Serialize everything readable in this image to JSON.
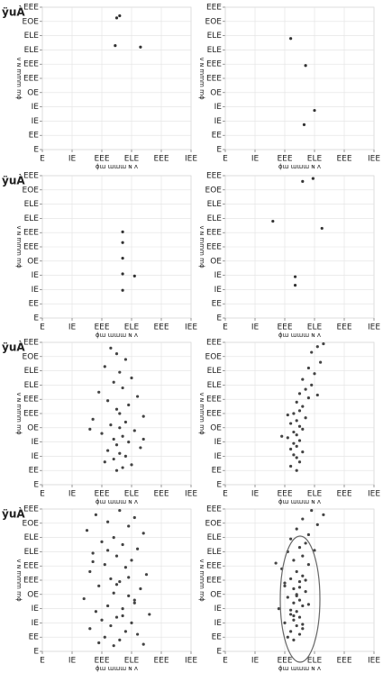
{
  "chart_data": [
    {
      "type": "scatter",
      "label": "ÿuÀ",
      "x_label": "ɸɯ ɯɯɯ ɴ ʌ",
      "y_label": "ɸɯ ɯɯɯ ɴ ʌ",
      "x": [
        2.5,
        2.6,
        2.45,
        3.3
      ],
      "y": [
        9.25,
        9.4,
        7.3,
        7.2
      ],
      "xlim": [
        0,
        5
      ],
      "ylim": [
        0,
        10
      ],
      "xticks": [
        {
          "value": 0,
          "label": "E"
        },
        {
          "value": 1,
          "label": "IE"
        },
        {
          "value": 2,
          "label": "EEE"
        },
        {
          "value": 3,
          "label": "ELE"
        },
        {
          "value": 4,
          "label": "EEE"
        },
        {
          "value": 5,
          "label": "IEE"
        }
      ],
      "yticks": [
        {
          "value": 0,
          "label": "E"
        },
        {
          "value": 1,
          "label": "EE"
        },
        {
          "value": 2,
          "label": "IE"
        },
        {
          "value": 3,
          "label": "IE"
        },
        {
          "value": 4,
          "label": "OE"
        },
        {
          "value": 5,
          "label": "EEE"
        },
        {
          "value": 6,
          "label": "EEE"
        },
        {
          "value": 7,
          "label": "ELE"
        },
        {
          "value": 8,
          "label": "ELE"
        },
        {
          "value": 9,
          "label": "EOE"
        },
        {
          "value": 10,
          "label": "EEE"
        }
      ],
      "color": "#333333",
      "grid": true
    },
    {
      "type": "scatter",
      "x_label": "ɸɯ ɯɯɯ ɴ ʌ",
      "y_label": "ɸɯ ɯɯɯ ɴ ʌ",
      "x": [
        2.2,
        2.7,
        3.0,
        2.65
      ],
      "y": [
        7.8,
        5.9,
        2.75,
        1.75
      ],
      "xlim": [
        0,
        5
      ],
      "ylim": [
        0,
        10
      ],
      "xticks": [
        {
          "value": 0,
          "label": "E"
        },
        {
          "value": 1,
          "label": "IE"
        },
        {
          "value": 2,
          "label": "EEE"
        },
        {
          "value": 3,
          "label": "ELE"
        },
        {
          "value": 4,
          "label": "EEE"
        },
        {
          "value": 5,
          "label": "IEE"
        }
      ],
      "yticks": [
        {
          "value": 0,
          "label": "E"
        },
        {
          "value": 1,
          "label": "EE"
        },
        {
          "value": 2,
          "label": "IE"
        },
        {
          "value": 3,
          "label": "IE"
        },
        {
          "value": 4,
          "label": "OE"
        },
        {
          "value": 5,
          "label": "EEE"
        },
        {
          "value": 6,
          "label": "EEE"
        },
        {
          "value": 7,
          "label": "ELE"
        },
        {
          "value": 8,
          "label": "ELE"
        },
        {
          "value": 9,
          "label": "EOE"
        },
        {
          "value": 10,
          "label": "EEE"
        }
      ],
      "color": "#333333",
      "grid": true
    },
    {
      "type": "scatter",
      "label": "ÿuÀ",
      "x_label": "ɸɯ ɯɯɯ ɴ ʌ",
      "y_label": "ɸɯ ɯɯɯ ɴ ʌ",
      "x": [
        2.7,
        2.7,
        2.7,
        2.7,
        3.1,
        2.7
      ],
      "y": [
        6.05,
        5.3,
        4.2,
        3.1,
        2.95,
        1.95
      ],
      "xlim": [
        0,
        5
      ],
      "ylim": [
        0,
        10
      ],
      "xticks": [
        {
          "value": 0,
          "label": "E"
        },
        {
          "value": 1,
          "label": "IE"
        },
        {
          "value": 2,
          "label": "EEE"
        },
        {
          "value": 3,
          "label": "ELE"
        },
        {
          "value": 4,
          "label": "EEE"
        },
        {
          "value": 5,
          "label": "IEE"
        }
      ],
      "yticks": [
        {
          "value": 0,
          "label": "E"
        },
        {
          "value": 1,
          "label": "EE"
        },
        {
          "value": 2,
          "label": "IE"
        },
        {
          "value": 3,
          "label": "IE"
        },
        {
          "value": 4,
          "label": "OE"
        },
        {
          "value": 5,
          "label": "EEE"
        },
        {
          "value": 6,
          "label": "EEE"
        },
        {
          "value": 7,
          "label": "ELE"
        },
        {
          "value": 8,
          "label": "ELE"
        },
        {
          "value": 9,
          "label": "EOE"
        },
        {
          "value": 10,
          "label": "EEE"
        }
      ],
      "color": "#333333",
      "grid": true
    },
    {
      "type": "scatter",
      "x_label": "ɸɯ ɯɯɯ ɴ ʌ",
      "y_label": "ɸɯ ɯɯɯ ɴ ʌ",
      "x": [
        2.6,
        2.95,
        1.6,
        3.25,
        2.35,
        2.35
      ],
      "y": [
        9.6,
        9.8,
        6.8,
        6.3,
        2.9,
        2.3
      ],
      "xlim": [
        0,
        5
      ],
      "ylim": [
        0,
        10
      ],
      "xticks": [
        {
          "value": 0,
          "label": "E"
        },
        {
          "value": 1,
          "label": "IE"
        },
        {
          "value": 2,
          "label": "EEE"
        },
        {
          "value": 3,
          "label": "ELE"
        },
        {
          "value": 4,
          "label": "EEE"
        },
        {
          "value": 5,
          "label": "IEE"
        }
      ],
      "yticks": [
        {
          "value": 0,
          "label": "E"
        },
        {
          "value": 1,
          "label": "EE"
        },
        {
          "value": 2,
          "label": "IE"
        },
        {
          "value": 3,
          "label": "IE"
        },
        {
          "value": 4,
          "label": "OE"
        },
        {
          "value": 5,
          "label": "EEE"
        },
        {
          "value": 6,
          "label": "EEE"
        },
        {
          "value": 7,
          "label": "ELE"
        },
        {
          "value": 8,
          "label": "ELE"
        },
        {
          "value": 9,
          "label": "EOE"
        },
        {
          "value": 10,
          "label": "EEE"
        }
      ],
      "color": "#333333",
      "grid": true
    },
    {
      "type": "scatter",
      "label": "ÿuÀ",
      "x_label": "ɸɯ ɯɯɯ ɴ ʌ",
      "y_label": "ɸɯ ɯɯɯ ɴ ʌ",
      "x": [
        2.3,
        2.5,
        2.8,
        2.1,
        2.6,
        3.0,
        2.4,
        2.7,
        1.9,
        3.2,
        2.2,
        2.9,
        2.5,
        2.6,
        3.4,
        1.7,
        2.8,
        2.3,
        2.6,
        3.1,
        2.0,
        2.7,
        2.4,
        2.9,
        2.5,
        3.3,
        2.2,
        2.6,
        2.8,
        2.4,
        2.1,
        3.0,
        2.7,
        2.5,
        1.6,
        3.4
      ],
      "y": [
        9.6,
        9.2,
        8.8,
        8.3,
        7.9,
        7.5,
        7.2,
        6.8,
        6.5,
        6.2,
        5.9,
        5.6,
        5.3,
        5.0,
        4.8,
        4.6,
        4.4,
        4.2,
        4.0,
        3.8,
        3.6,
        3.4,
        3.2,
        3.0,
        2.8,
        2.6,
        2.4,
        2.2,
        2.0,
        1.8,
        1.6,
        1.4,
        1.2,
        1.0,
        3.9,
        3.2
      ],
      "xlim": [
        0,
        5
      ],
      "ylim": [
        0,
        10
      ],
      "xticks": [
        {
          "value": 0,
          "label": "E"
        },
        {
          "value": 1,
          "label": "IE"
        },
        {
          "value": 2,
          "label": "EEE"
        },
        {
          "value": 3,
          "label": "ELE"
        },
        {
          "value": 4,
          "label": "EEE"
        },
        {
          "value": 5,
          "label": "IEE"
        }
      ],
      "yticks": [
        {
          "value": 0,
          "label": "E"
        },
        {
          "value": 1,
          "label": "EE"
        },
        {
          "value": 2,
          "label": "IE"
        },
        {
          "value": 3,
          "label": "IE"
        },
        {
          "value": 4,
          "label": "OE"
        },
        {
          "value": 5,
          "label": "EEE"
        },
        {
          "value": 6,
          "label": "EEE"
        },
        {
          "value": 7,
          "label": "ELE"
        },
        {
          "value": 8,
          "label": "ELE"
        },
        {
          "value": 9,
          "label": "EOE"
        },
        {
          "value": 10,
          "label": "EEE"
        }
      ],
      "color": "#444444",
      "grid": true
    },
    {
      "type": "scatter",
      "x_label": "ɸɯ ɯɯɯ ɴ ʌ",
      "y_label": "ɸɯ ɯɯɯ ɴ ʌ",
      "x": [
        3.1,
        3.3,
        2.9,
        3.2,
        2.8,
        3.0,
        2.6,
        2.9,
        2.7,
        2.5,
        2.8,
        2.4,
        2.6,
        2.5,
        2.3,
        2.7,
        2.4,
        2.2,
        2.5,
        2.6,
        2.3,
        2.4,
        2.1,
        2.5,
        2.3,
        2.4,
        2.2,
        2.6,
        2.3,
        2.4,
        1.9,
        2.5,
        2.2,
        2.4,
        3.1,
        2.1
      ],
      "y": [
        9.7,
        9.9,
        9.3,
        8.6,
        8.2,
        7.8,
        7.4,
        7.0,
        6.7,
        6.4,
        6.1,
        5.8,
        5.5,
        5.2,
        5.0,
        4.7,
        4.5,
        4.3,
        4.1,
        3.9,
        3.7,
        3.5,
        3.3,
        3.1,
        2.9,
        2.7,
        2.5,
        2.3,
        2.1,
        1.9,
        3.4,
        1.6,
        1.3,
        1.0,
        6.3,
        4.9
      ],
      "xlim": [
        0,
        5
      ],
      "ylim": [
        0,
        10
      ],
      "xticks": [
        {
          "value": 0,
          "label": "E"
        },
        {
          "value": 1,
          "label": "IE"
        },
        {
          "value": 2,
          "label": "EEE"
        },
        {
          "value": 3,
          "label": "ELE"
        },
        {
          "value": 4,
          "label": "EEE"
        },
        {
          "value": 5,
          "label": "IEE"
        }
      ],
      "yticks": [
        {
          "value": 0,
          "label": "E"
        },
        {
          "value": 1,
          "label": "EE"
        },
        {
          "value": 2,
          "label": "IE"
        },
        {
          "value": 3,
          "label": "IE"
        },
        {
          "value": 4,
          "label": "OE"
        },
        {
          "value": 5,
          "label": "EEE"
        },
        {
          "value": 6,
          "label": "EEE"
        },
        {
          "value": 7,
          "label": "ELE"
        },
        {
          "value": 8,
          "label": "ELE"
        },
        {
          "value": 9,
          "label": "EOE"
        },
        {
          "value": 10,
          "label": "EEE"
        }
      ],
      "color": "#444444",
      "grid": true
    },
    {
      "type": "scatter",
      "label": "ÿuÀ",
      "x_label": "ɸɯ ɯɯɯ ɴ ʌ",
      "y_label": "ɸɯ ɯɯɯ ɴ ʌ",
      "x": [
        2.6,
        1.8,
        3.1,
        2.2,
        2.9,
        1.5,
        3.4,
        2.4,
        2.0,
        2.7,
        3.2,
        1.7,
        2.5,
        3.0,
        2.1,
        2.8,
        1.6,
        3.5,
        2.3,
        2.6,
        1.9,
        3.3,
        2.4,
        2.9,
        1.4,
        3.1,
        2.2,
        2.7,
        1.8,
        3.6,
        2.5,
        2.0,
        3.0,
        2.3,
        1.6,
        2.8,
        3.2,
        2.1,
        2.6,
        1.9,
        3.4,
        2.4,
        2.9,
        1.7,
        3.1,
        2.5,
        2.2,
        2.7
      ],
      "y": [
        9.9,
        9.6,
        9.4,
        9.1,
        8.8,
        8.5,
        8.3,
        8.0,
        7.7,
        7.5,
        7.2,
        6.9,
        6.7,
        6.4,
        6.1,
        5.9,
        5.6,
        5.4,
        5.1,
        4.9,
        4.6,
        4.4,
        4.1,
        3.9,
        3.7,
        3.4,
        3.2,
        3.0,
        2.8,
        2.6,
        2.4,
        2.2,
        2.0,
        1.8,
        1.6,
        1.4,
        1.2,
        1.0,
        0.8,
        0.6,
        0.5,
        0.4,
        5.2,
        6.3,
        3.6,
        4.7,
        7.1,
        2.5
      ],
      "xlim": [
        0,
        5
      ],
      "ylim": [
        0,
        10
      ],
      "xticks": [
        {
          "value": 0,
          "label": "E"
        },
        {
          "value": 1,
          "label": "IE"
        },
        {
          "value": 2,
          "label": "EEE"
        },
        {
          "value": 3,
          "label": "ELE"
        },
        {
          "value": 4,
          "label": "EEE"
        },
        {
          "value": 5,
          "label": "IEE"
        }
      ],
      "yticks": [
        {
          "value": 0,
          "label": "E"
        },
        {
          "value": 1,
          "label": "EE"
        },
        {
          "value": 2,
          "label": "IE"
        },
        {
          "value": 3,
          "label": "IE"
        },
        {
          "value": 4,
          "label": "OE"
        },
        {
          "value": 5,
          "label": "EEE"
        },
        {
          "value": 6,
          "label": "EEE"
        },
        {
          "value": 7,
          "label": "ELE"
        },
        {
          "value": 8,
          "label": "ELE"
        },
        {
          "value": 9,
          "label": "EOE"
        },
        {
          "value": 10,
          "label": "EEE"
        }
      ],
      "color": "#444444",
      "grid": true
    },
    {
      "type": "scatter",
      "x_label": "ɸɯ ɯɯɯ ɴ ʌ",
      "y_label": "ɸɯ ɯɯɯ ɴ ʌ",
      "x": [
        2.9,
        3.3,
        2.6,
        3.1,
        2.4,
        2.8,
        2.2,
        2.7,
        2.5,
        2.1,
        2.6,
        2.3,
        2.8,
        1.9,
        2.4,
        2.6,
        2.2,
        2.5,
        2.0,
        2.3,
        2.7,
        2.4,
        2.1,
        2.5,
        2.3,
        2.6,
        1.8,
        2.4,
        2.2,
        2.5,
        2.3,
        2.0,
        2.4,
        2.6,
        2.2,
        2.5,
        2.1,
        2.3,
        2.7,
        2.4,
        1.7,
        3.0,
        2.2,
        2.5,
        2.8,
        2.3,
        2.0,
        2.6
      ],
      "y": [
        9.9,
        9.6,
        9.3,
        8.9,
        8.6,
        8.2,
        7.9,
        7.6,
        7.3,
        7.0,
        6.7,
        6.4,
        6.1,
        5.8,
        5.6,
        5.3,
        5.1,
        4.9,
        4.6,
        4.4,
        4.2,
        4.0,
        3.8,
        3.6,
        3.4,
        3.2,
        3.0,
        2.8,
        2.6,
        2.4,
        2.2,
        2.0,
        1.8,
        1.6,
        1.4,
        1.2,
        1.0,
        0.8,
        5.0,
        3.9,
        6.2,
        7.1,
        2.9,
        4.5,
        3.3,
        2.5,
        4.8,
        1.9
      ],
      "xlim": [
        0,
        5
      ],
      "ylim": [
        0,
        10
      ],
      "xticks": [
        {
          "value": 0,
          "label": "E"
        },
        {
          "value": 1,
          "label": "IE"
        },
        {
          "value": 2,
          "label": "EEE"
        },
        {
          "value": 3,
          "label": "ELE"
        },
        {
          "value": 4,
          "label": "EEE"
        },
        {
          "value": 5,
          "label": "IEE"
        }
      ],
      "yticks": [
        {
          "value": 0,
          "label": "E"
        },
        {
          "value": 1,
          "label": "EE"
        },
        {
          "value": 2,
          "label": "IE"
        },
        {
          "value": 3,
          "label": "IE"
        },
        {
          "value": 4,
          "label": "OE"
        },
        {
          "value": 5,
          "label": "EEE"
        },
        {
          "value": 6,
          "label": "EEE"
        },
        {
          "value": 7,
          "label": "ELE"
        },
        {
          "value": 8,
          "label": "ELE"
        },
        {
          "value": 9,
          "label": "EOE"
        },
        {
          "value": 10,
          "label": "EEE"
        }
      ],
      "color": "#444444",
      "grid": true
    }
  ]
}
